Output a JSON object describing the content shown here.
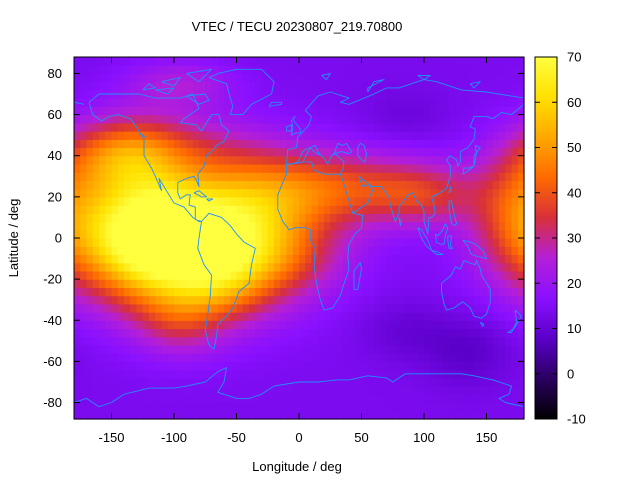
{
  "chart_data": {
    "type": "heatmap",
    "title": "VTEC / TECU 20230807_219.70800",
    "xlabel": "Longitude / deg",
    "ylabel": "Latitude / deg",
    "xlim": [
      -180,
      180
    ],
    "ylim": [
      -88,
      88
    ],
    "xticks": [
      -150,
      -100,
      -50,
      0,
      50,
      100,
      150
    ],
    "yticks": [
      -80,
      -60,
      -40,
      -20,
      0,
      20,
      40,
      60,
      80
    ],
    "colorbar": {
      "range": [
        -10,
        70
      ],
      "ticks": [
        -10,
        0,
        10,
        20,
        30,
        40,
        50,
        60,
        70
      ],
      "palette": [
        "#000000",
        "#2a0060",
        "#5a00c8",
        "#8a10ff",
        "#b41fd8",
        "#d8303a",
        "#ff6a00",
        "#ffa800",
        "#ffe000",
        "#ffff40"
      ]
    },
    "grid": false,
    "overlay": "coastlines",
    "coastline_color": "#1e90ff",
    "features": [
      {
        "type": "peak",
        "lon": -105,
        "lat": -3,
        "sx": 55,
        "sy": 20,
        "value": 48
      },
      {
        "type": "peak",
        "lon": -125,
        "lat": 15,
        "sx": 30,
        "sy": 25,
        "value": 20
      },
      {
        "type": "peak",
        "lon": -60,
        "lat": 0,
        "sx": 50,
        "sy": 25,
        "value": 22
      },
      {
        "type": "peak",
        "lon": -145,
        "lat": 40,
        "sx": 30,
        "sy": 12,
        "value": 18
      },
      {
        "type": "peak",
        "lon": -100,
        "lat": 45,
        "sx": 50,
        "sy": 12,
        "value": 10
      },
      {
        "type": "peak",
        "lon": -20,
        "lat": 20,
        "sx": 45,
        "sy": 16,
        "value": 16
      },
      {
        "type": "peak",
        "lon": 50,
        "lat": 25,
        "sx": 55,
        "sy": 12,
        "value": 18
      },
      {
        "type": "peak",
        "lon": 100,
        "lat": 20,
        "sx": 30,
        "sy": 10,
        "value": 12
      },
      {
        "type": "peak",
        "lon": 175,
        "lat": 15,
        "sx": 25,
        "sy": 20,
        "value": 18
      },
      {
        "type": "peak",
        "lon": -20,
        "lat": -10,
        "sx": 40,
        "sy": 12,
        "value": 10
      },
      {
        "type": "peak",
        "lon": -95,
        "lat": -40,
        "sx": 25,
        "sy": 12,
        "value": 12
      },
      {
        "type": "peak",
        "lon": -60,
        "lat": -25,
        "sx": 25,
        "sy": 10,
        "value": 8
      },
      {
        "type": "peak",
        "lon": -95,
        "lat": 75,
        "sx": 30,
        "sy": 8,
        "value": 10
      },
      {
        "type": "trough",
        "lon": 135,
        "lat": -55,
        "sx": 25,
        "sy": 12,
        "value": -6
      },
      {
        "type": "trough",
        "lon": 85,
        "lat": -45,
        "sx": 25,
        "sy": 10,
        "value": -4
      },
      {
        "type": "trough",
        "lon": 85,
        "lat": 60,
        "sx": 25,
        "sy": 10,
        "value": -3
      }
    ],
    "background_value": 14
  }
}
